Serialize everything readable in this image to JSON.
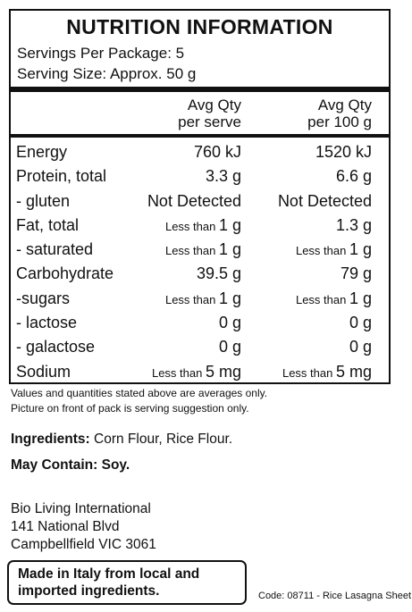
{
  "panel": {
    "title": "NUTRITION INFORMATION",
    "servings_per_package": "Servings Per Package: 5",
    "serving_size": "Serving Size: Approx. 50 g",
    "col1_header": [
      "Avg Qty",
      "per serve"
    ],
    "col2_header": [
      "Avg Qty",
      "per 100 g"
    ],
    "rows": [
      {
        "label": "Energy",
        "serve": [
          "",
          "760 kJ"
        ],
        "per100": [
          "",
          "1520 kJ"
        ]
      },
      {
        "label": "Protein, total",
        "serve": [
          "",
          "3.3 g"
        ],
        "per100": [
          "",
          "6.6 g"
        ]
      },
      {
        "label": "- gluten",
        "serve": [
          "",
          "Not Detected"
        ],
        "per100": [
          "",
          "Not Detected"
        ]
      },
      {
        "label": "Fat, total",
        "serve": [
          "Less than ",
          "1 g"
        ],
        "per100": [
          "",
          "1.3 g"
        ]
      },
      {
        "label": "- saturated",
        "serve": [
          "Less than ",
          "1 g"
        ],
        "per100": [
          "Less than ",
          "1 g"
        ]
      },
      {
        "label": "Carbohydrate",
        "serve": [
          "",
          "39.5 g"
        ],
        "per100": [
          "",
          "79 g"
        ]
      },
      {
        "label": "-sugars",
        "serve": [
          "Less than ",
          "1 g"
        ],
        "per100": [
          "Less than ",
          "1 g"
        ]
      },
      {
        "label": "- lactose",
        "serve": [
          "",
          "0 g"
        ],
        "per100": [
          "",
          "0 g"
        ]
      },
      {
        "label": "- galactose",
        "serve": [
          "",
          "0 g"
        ],
        "per100": [
          "",
          "0 g"
        ]
      },
      {
        "label": " Sodium",
        "serve": [
          "Less than ",
          "5 mg"
        ],
        "per100": [
          "Less than ",
          "5 mg"
        ]
      }
    ]
  },
  "notes": [
    "Values and quantities stated above are averages only.",
    "Picture on front of pack is serving suggestion only."
  ],
  "ingredients": {
    "label": "Ingredients:",
    "text": " Corn Flour, Rice Flour."
  },
  "may_contain": "May Contain: Soy.",
  "address": [
    "Bio Living International",
    "141 National Blvd",
    "Campbellfield VIC 3061"
  ],
  "made_in": [
    "Made in Italy from local and",
    "imported ingredients."
  ],
  "code": "Code: 08711 - Rice Lasagna Sheet"
}
